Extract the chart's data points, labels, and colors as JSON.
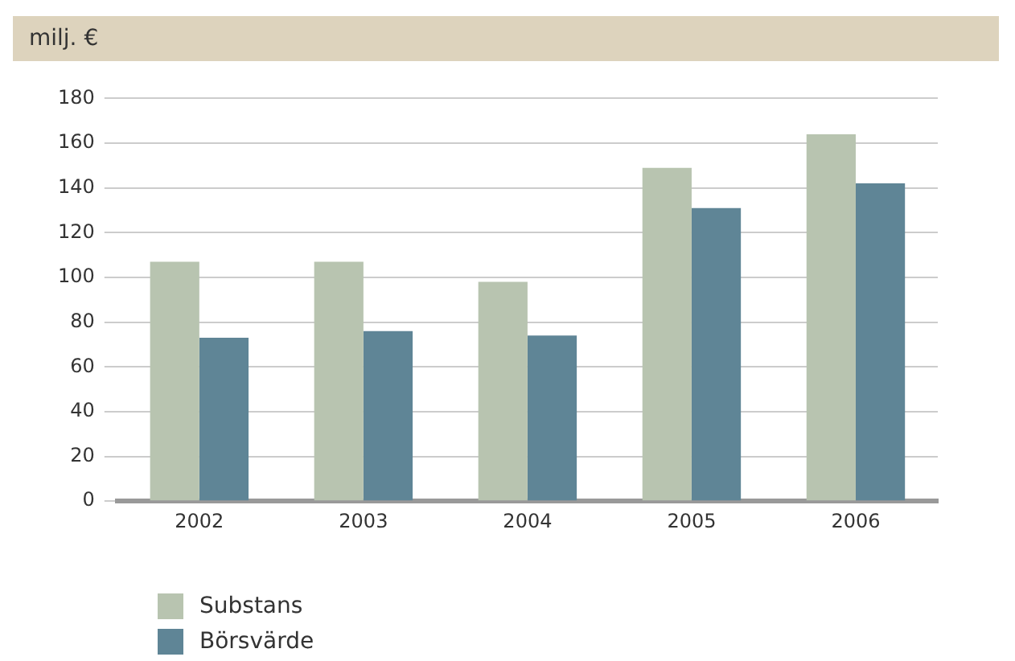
{
  "chart_data": {
    "type": "bar",
    "ylabel": "milj. €",
    "categories": [
      "2002",
      "2003",
      "2004",
      "2005",
      "2006"
    ],
    "series": [
      {
        "name": "Substans",
        "color": "#b8c4b0",
        "values": [
          107,
          107,
          98,
          149,
          164
        ]
      },
      {
        "name": "Börsvärde",
        "color": "#5f8596",
        "values": [
          73,
          76,
          74,
          131,
          142
        ]
      }
    ],
    "ylim": [
      0,
      180
    ],
    "yticks": [
      0,
      20,
      40,
      60,
      80,
      100,
      120,
      140,
      160,
      180
    ],
    "grid": "y",
    "legend": "bottom left"
  }
}
